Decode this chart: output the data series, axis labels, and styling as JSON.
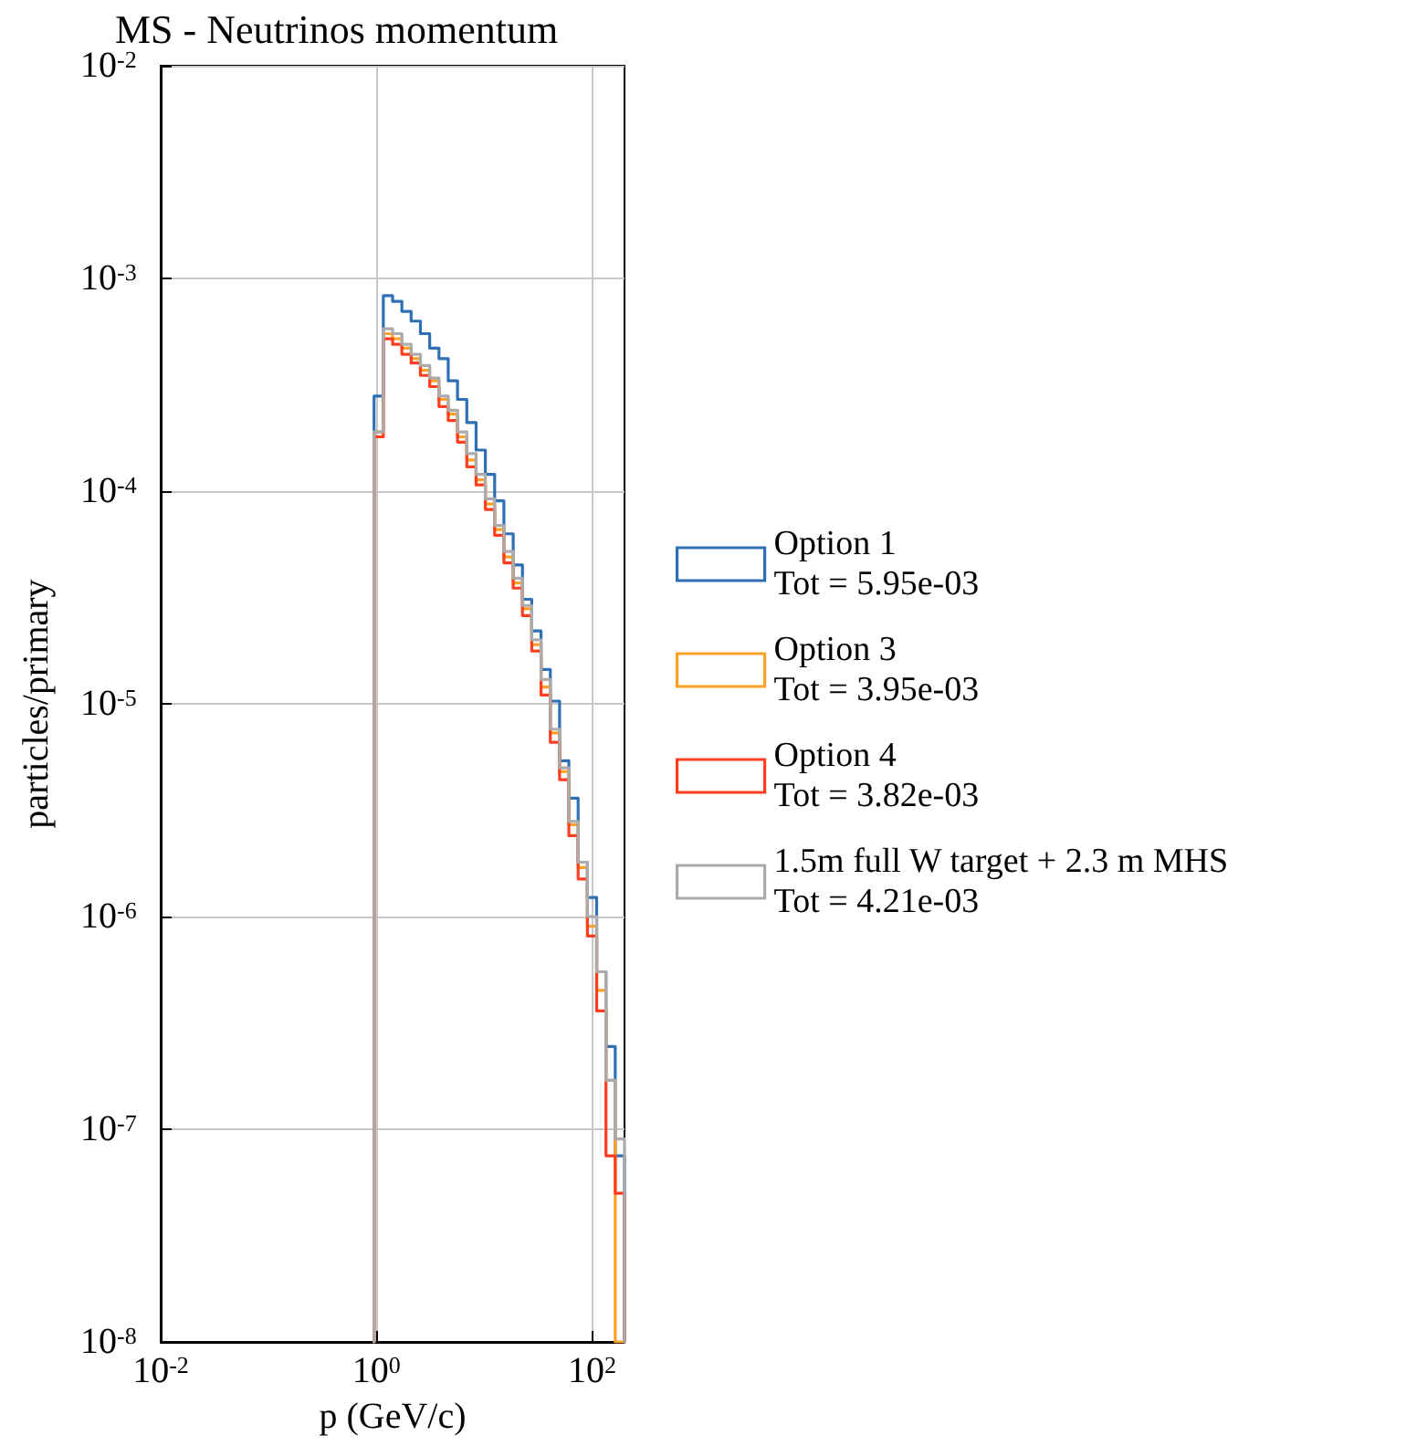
{
  "chart_data": {
    "type": "histogram",
    "title": "MS - Neutrinos momentum",
    "xlabel": "p (GeV/c)",
    "ylabel": "particles/primary",
    "bins": [
      0.952,
      1.16,
      1.414,
      1.724,
      2.101,
      2.562,
      3.123,
      3.807,
      4.641,
      5.656,
      6.897,
      8.409,
      10.25,
      12.5,
      15.23,
      18.57,
      22.63,
      27.6,
      33.65,
      41.03,
      50.0,
      60.96,
      74.31,
      90.58,
      110.4,
      134.6,
      164.1,
      200
    ],
    "series": [
      {
        "name": "Option 1\nTot = 5.95e-03",
        "color": "#2f6fb5",
        "values": [
          0.00028,
          0.00083,
          0.00078,
          0.0007,
          0.00063,
          0.00055,
          0.00047,
          0.00042,
          0.00033,
          0.00027,
          0.00021,
          0.000156,
          0.00012,
          9e-05,
          6.3e-05,
          4.5e-05,
          3.1e-05,
          2.2e-05,
          1.45e-05,
          1.03e-05,
          5.4e-06,
          3.6e-06,
          1.8e-06,
          1.23e-06,
          5.5e-07,
          2.45e-07,
          7.5e-08
        ]
      },
      {
        "name": "Option 3\nTot = 3.95e-03",
        "color": "#ffa126",
        "values": [
          0.00019,
          0.00055,
          0.00052,
          0.00047,
          0.00042,
          0.00037,
          0.00033,
          0.00027,
          0.00023,
          0.00018,
          0.00014,
          0.000113,
          8.7e-05,
          6.6e-05,
          4.9e-05,
          3.7e-05,
          2.8e-05,
          1.9e-05,
          1.2e-05,
          7.3e-06,
          4.8e-06,
          2.7e-06,
          1.7e-06,
          9e-07,
          4.5e-07,
          1.7e-07,
          null
        ]
      },
      {
        "name": "Option 4\nTot = 3.82e-03",
        "color": "#ff3d1f",
        "values": [
          0.00018,
          0.00052,
          0.00049,
          0.00044,
          0.0004,
          0.00035,
          0.00031,
          0.00025,
          0.000215,
          0.00017,
          0.00013,
          0.000107,
          8.2e-05,
          6.2e-05,
          4.6e-05,
          3.5e-05,
          2.6e-05,
          1.77e-05,
          1.1e-05,
          6.6e-06,
          4.4e-06,
          2.4e-06,
          1.5e-06,
          8.1e-07,
          3.6e-07,
          7.5e-08,
          5e-08
        ]
      },
      {
        "name": "1.5m full W target + 2.3 m MHS\nTot = 4.21e-03",
        "color": "#ababab",
        "values": [
          0.00019,
          0.00058,
          0.00055,
          0.00049,
          0.00044,
          0.00039,
          0.00034,
          0.00028,
          0.00024,
          0.00019,
          0.00015,
          0.00012,
          9.2e-05,
          6.9e-05,
          5.2e-05,
          3.9e-05,
          2.9e-05,
          2e-05,
          1.3e-05,
          7.6e-06,
          5e-06,
          2.8e-06,
          1.8e-06,
          1e-06,
          5.5e-07,
          1.7e-07,
          9e-08
        ]
      }
    ],
    "log": "xy",
    "xlim": [
      0.01,
      200
    ],
    "ylim": [
      1e-08,
      0.01
    ],
    "xticks": [
      {
        "value": 0.01,
        "label": "10$^{-2}$"
      },
      {
        "value": 1,
        "label": "10$^{0}$"
      },
      {
        "value": 100,
        "label": "10$^{2}$"
      }
    ],
    "yticks": [
      {
        "value": 1e-08,
        "label": "10$^{-8}$"
      },
      {
        "value": 1e-07,
        "label": "10$^{-7}$"
      },
      {
        "value": 1e-06,
        "label": "10$^{-6}$"
      },
      {
        "value": 1e-05,
        "label": "10$^{-5}$"
      },
      {
        "value": 0.0001,
        "label": "10$^{-4}$"
      },
      {
        "value": 0.001,
        "label": "10$^{-3}$"
      },
      {
        "value": 0.01,
        "label": "10$^{-2}$"
      }
    ],
    "grid": true,
    "legend": "right",
    "line_style": "solid"
  }
}
